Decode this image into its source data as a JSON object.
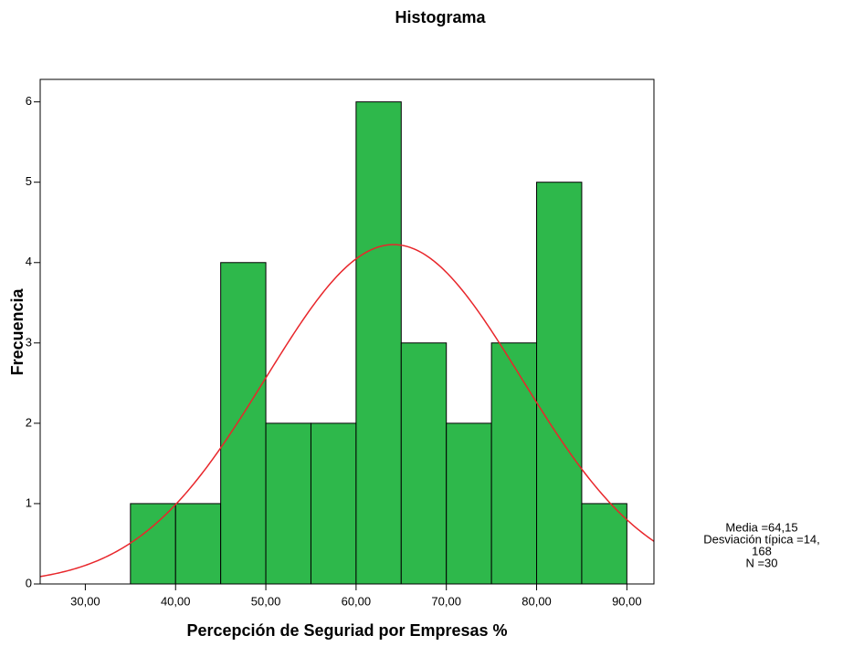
{
  "chart_data": {
    "type": "histogram",
    "title": "Histograma",
    "x_label": "Percepción de Seguriad por Empresas %",
    "y_label": "Frecuencia",
    "bins": [
      35,
      40,
      45,
      50,
      55,
      60,
      65,
      70,
      75,
      80,
      85,
      90
    ],
    "values": [
      1,
      1,
      4,
      2,
      2,
      6,
      3,
      2,
      3,
      5,
      1
    ],
    "color": "#2eb84b",
    "xlim": [
      25,
      93
    ],
    "ylim": [
      0,
      6.28
    ],
    "xticks": [
      {
        "value": 30,
        "label": "30,00"
      },
      {
        "value": 40,
        "label": "40,00"
      },
      {
        "value": 50,
        "label": "50,00"
      },
      {
        "value": 60,
        "label": "60,00"
      },
      {
        "value": 70,
        "label": "70,00"
      },
      {
        "value": 80,
        "label": "80,00"
      },
      {
        "value": 90,
        "label": "90,00"
      }
    ],
    "yticks": [
      0,
      1,
      2,
      3,
      4,
      5,
      6
    ],
    "normal_curve": {
      "mean": 64.15,
      "sd": 14.168,
      "n": 30,
      "color": "#e8262b"
    },
    "annotation": [
      "Media =64,15",
      "Desviación típica =14,",
      "168",
      "N =30"
    ]
  }
}
